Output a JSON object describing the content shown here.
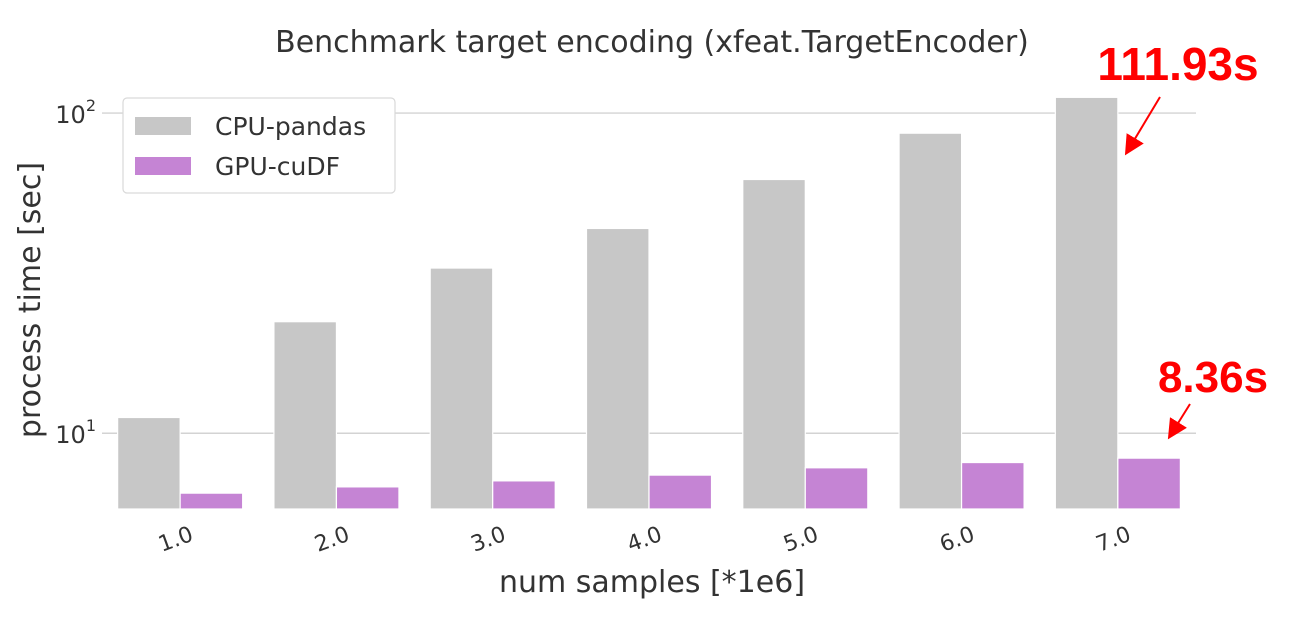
{
  "chart_data": {
    "type": "bar",
    "title": "Benchmark target encoding (xfeat.TargetEncoder)",
    "xlabel": "num samples [*1e6]",
    "ylabel": "process time [sec]",
    "yscale": "log",
    "ylim": [
      5.8,
      118
    ],
    "yticks": [
      {
        "value": 10,
        "base": "10",
        "exp": "1"
      },
      {
        "value": 100,
        "base": "10",
        "exp": "2"
      }
    ],
    "categories": [
      "1.0",
      "2.0",
      "3.0",
      "4.0",
      "5.0",
      "6.0",
      "7.0"
    ],
    "series": [
      {
        "name": "CPU-pandas",
        "color": "#c7c7c7",
        "values": [
          11.2,
          22.3,
          32.8,
          43.6,
          62.0,
          86.5,
          111.93
        ]
      },
      {
        "name": "GPU-cuDF",
        "color": "#c584d4",
        "values": [
          6.5,
          6.8,
          7.1,
          7.4,
          7.8,
          8.1,
          8.36
        ]
      }
    ],
    "grid": "horizontal",
    "legend_position": "top-left",
    "annotations": [
      {
        "text": "111.93s",
        "series": 0,
        "category": "7.0",
        "color": "#ff0000"
      },
      {
        "text": "8.36s",
        "series": 1,
        "category": "7.0",
        "color": "#ff0000"
      }
    ]
  }
}
